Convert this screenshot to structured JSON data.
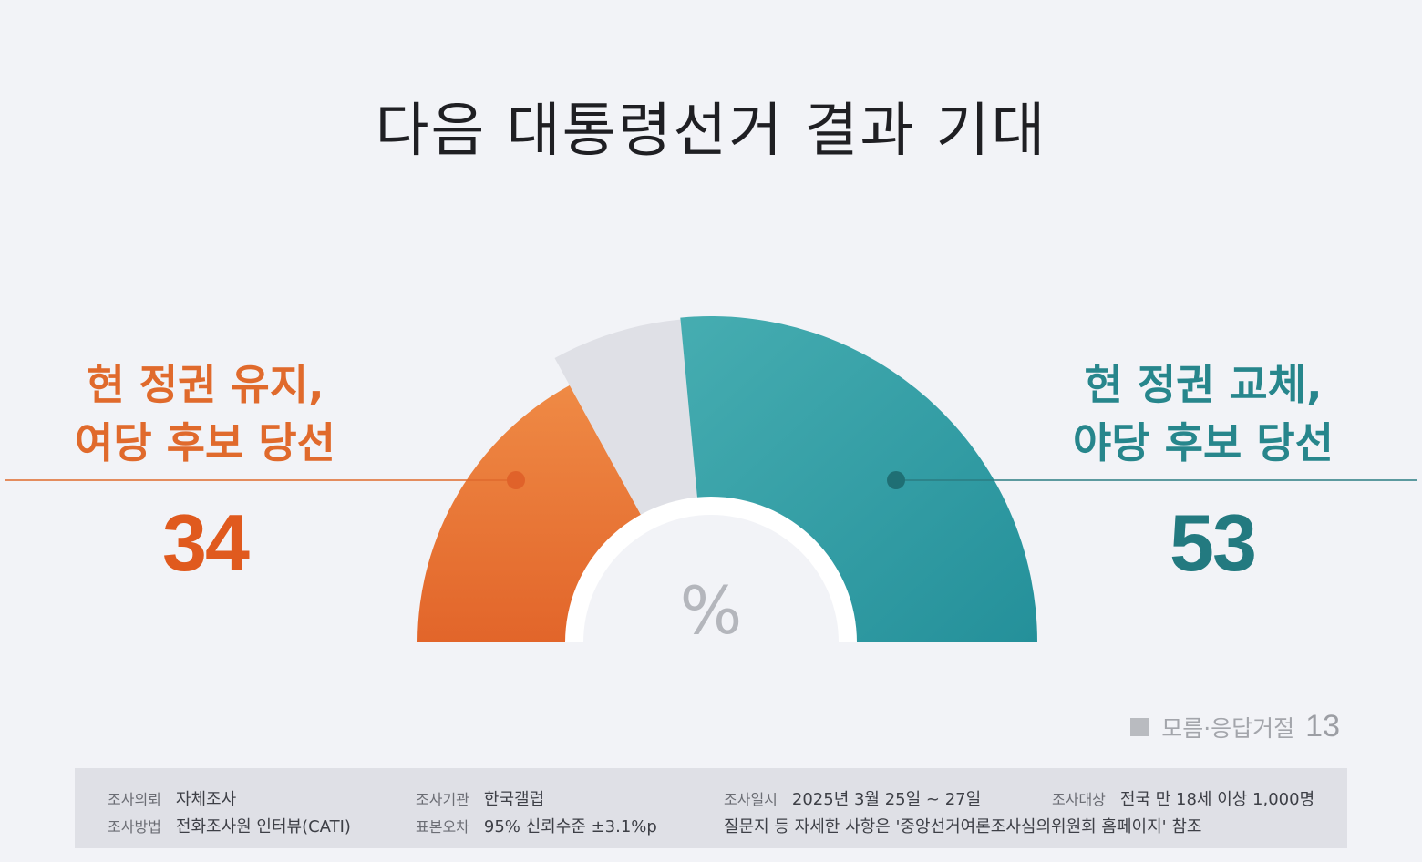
{
  "title": "다음 대통령선거 결과 기대",
  "chart_data": {
    "type": "gauge",
    "unit": "%",
    "segments": [
      {
        "name": "현 정권 유지, 여당 후보 당선",
        "value": 34,
        "color": "#e8732f"
      },
      {
        "name": "모름·응답거절",
        "value": 13,
        "color": "#dfe0e6"
      },
      {
        "name": "현 정권 교체, 야당 후보 당선",
        "value": 53,
        "color": "#2e9da2"
      }
    ]
  },
  "labels": {
    "left_line1": "현 정권 유지,",
    "left_line2": "여당 후보 당선",
    "left_value": "34",
    "right_line1": "현 정권 교체,",
    "right_line2": "야당 후보 당선",
    "right_value": "53",
    "unit": "%",
    "dk_label": "모름·응답거절",
    "dk_value": "13"
  },
  "info": {
    "row1": [
      {
        "key": "조사의뢰",
        "value": "자체조사"
      },
      {
        "key": "조사기관",
        "value": "한국갤럽"
      },
      {
        "key": "조사일시",
        "value": "2025년 3월 25일 ~ 27일"
      },
      {
        "key": "조사대상",
        "value": "전국 만 18세 이상 1,000명"
      }
    ],
    "row2": [
      {
        "key": "조사방법",
        "value": "전화조사원 인터뷰(CATI)"
      },
      {
        "key": "표본오차",
        "value": "95% 신뢰수준 ±3.1%p"
      },
      {
        "key": "",
        "value": "질문지 등 자세한 사항은 '중앙선거여론조사심의위원회 홈페이지' 참조"
      }
    ]
  }
}
